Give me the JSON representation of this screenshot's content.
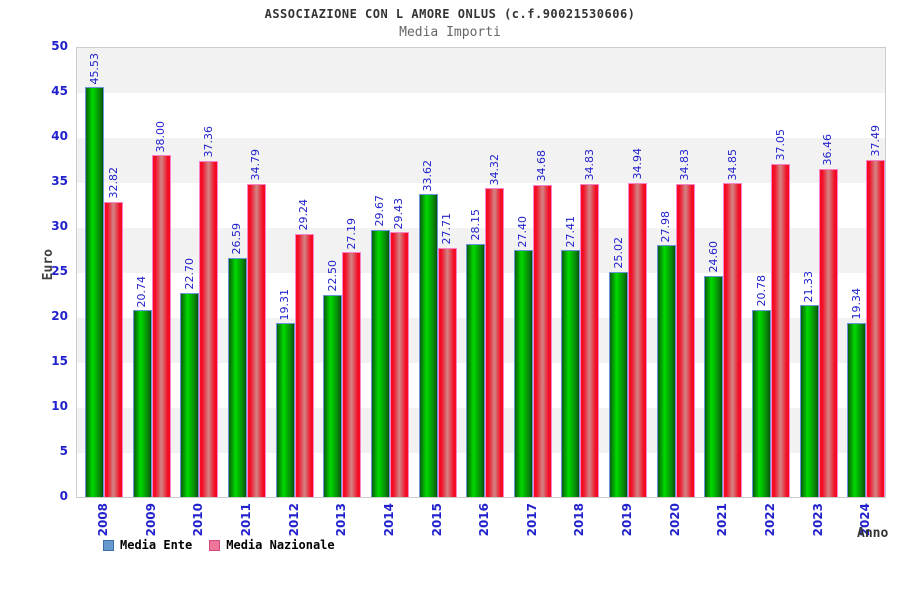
{
  "chart_data": {
    "type": "bar",
    "title": "ASSOCIAZIONE CON L AMORE ONLUS (c.f.90021530606)",
    "subtitle": "Media Importi",
    "xlabel": "Anno",
    "ylabel": "Euro",
    "ylim": [
      0,
      50
    ],
    "ytick_step": 5,
    "grid": "alternating-horizontal-bands",
    "legend_position": "bottom-left",
    "value_labels": "rotated-90-above-bars",
    "categories": [
      "2008",
      "2009",
      "2010",
      "2011",
      "2012",
      "2013",
      "2014",
      "2015",
      "2016",
      "2017",
      "2018",
      "2019",
      "2020",
      "2021",
      "2022",
      "2023",
      "2024"
    ],
    "series": [
      {
        "name": "Media Ente",
        "values": [
          45.53,
          20.74,
          22.7,
          26.59,
          19.31,
          22.5,
          29.67,
          33.62,
          28.15,
          27.4,
          27.41,
          25.02,
          27.98,
          24.6,
          20.78,
          21.33,
          19.34
        ]
      },
      {
        "name": "Media Nazionale",
        "values": [
          32.82,
          38.0,
          37.36,
          34.79,
          29.24,
          27.19,
          29.43,
          27.71,
          34.32,
          34.68,
          34.83,
          34.94,
          34.83,
          34.85,
          37.05,
          36.46,
          37.49
        ]
      }
    ]
  },
  "colors": {
    "axis_label_blue": "#2222cc",
    "band_gray": "#f2f2f2",
    "plot_border": "#cccccc",
    "bar_ente_center": "#00d900",
    "bar_ente_edge": "#065406",
    "bar_ente_outline": "#6b96dc",
    "bar_nazionale_center": "#d28585",
    "bar_nazionale_edge": "#fb0823",
    "bar_nazionale_outline": "#f585c8",
    "legend_ente_swatch": "#6699cc",
    "legend_nazionale_swatch": "#ee7799",
    "title_color": "#333333",
    "subtitle_color": "#666666"
  }
}
